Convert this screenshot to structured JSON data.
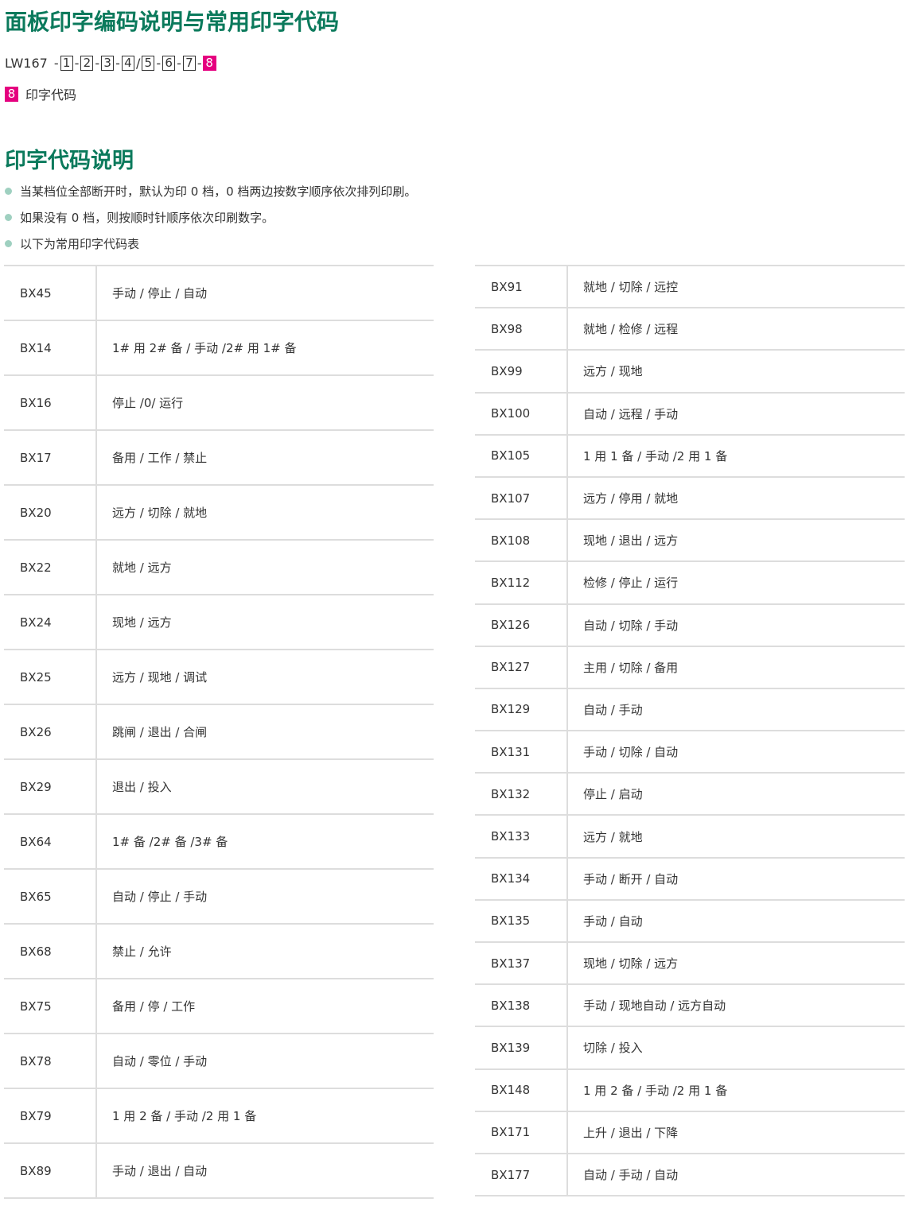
{
  "title": "面板印字编码说明与常用印字代码",
  "model": {
    "prefix": "LW167",
    "parts": [
      "1",
      "2",
      "3",
      "4",
      "5",
      "6",
      "7"
    ],
    "highlight": "8",
    "highlight_color": "#e5007f"
  },
  "legend": {
    "number": "8",
    "label": "印字代码"
  },
  "section_title": "印字代码说明",
  "bullets": [
    "当某档位全部断开时，默认为印 0 档，0 档两边按数字顺序依次排列印刷。",
    "如果没有 0 档，则按顺时针顺序依次印刷数字。",
    "以下为常用印字代码表"
  ],
  "accent_color": "#0b7a5c",
  "left_table": [
    [
      "BX45",
      "手动 / 停止 / 自动"
    ],
    [
      "BX14",
      "1# 用 2# 备 / 手动 /2# 用 1# 备"
    ],
    [
      "BX16",
      "停止 /0/ 运行"
    ],
    [
      "BX17",
      "备用 / 工作 / 禁止"
    ],
    [
      "BX20",
      "远方 / 切除 / 就地"
    ],
    [
      "BX22",
      "就地 / 远方"
    ],
    [
      "BX24",
      "现地 / 远方"
    ],
    [
      "BX25",
      "远方 / 现地 / 调试"
    ],
    [
      "BX26",
      "跳闸 / 退出 / 合闸"
    ],
    [
      "BX29",
      "退出 / 投入"
    ],
    [
      "BX64",
      "1# 备 /2# 备 /3# 备"
    ],
    [
      "BX65",
      "自动 / 停止 / 手动"
    ],
    [
      "BX68",
      "禁止 / 允许"
    ],
    [
      "BX75",
      "备用 / 停 / 工作"
    ],
    [
      "BX78",
      "自动 / 零位 / 手动"
    ],
    [
      "BX79",
      "1 用 2 备 / 手动 /2 用 1 备"
    ],
    [
      "BX89",
      "手动 / 退出 / 自动"
    ]
  ],
  "right_table": [
    [
      "BX91",
      "就地 / 切除 / 远控"
    ],
    [
      "BX98",
      "就地 / 检修 / 远程"
    ],
    [
      "BX99",
      "远方 / 现地"
    ],
    [
      "BX100",
      "自动 / 远程 / 手动"
    ],
    [
      "BX105",
      "1 用 1 备 / 手动 /2 用 1 备"
    ],
    [
      "BX107",
      "远方 / 停用 / 就地"
    ],
    [
      "BX108",
      "现地 / 退出 / 远方"
    ],
    [
      "BX112",
      "检修 / 停止 / 运行"
    ],
    [
      "BX126",
      "自动 / 切除 / 手动"
    ],
    [
      "BX127",
      "主用 / 切除 / 备用"
    ],
    [
      "BX129",
      "自动 / 手动"
    ],
    [
      "BX131",
      "手动 / 切除 / 自动"
    ],
    [
      "BX132",
      "停止 / 启动"
    ],
    [
      "BX133",
      "远方 / 就地"
    ],
    [
      "BX134",
      "手动 / 断开 / 自动"
    ],
    [
      "BX135",
      "手动 / 自动"
    ],
    [
      "BX137",
      "现地 / 切除 / 远方"
    ],
    [
      "BX138",
      "手动 / 现地自动 / 远方自动"
    ],
    [
      "BX139",
      "切除 / 投入"
    ],
    [
      "BX148",
      "1 用 2 备 / 手动 /2 用 1 备"
    ],
    [
      "BX171",
      "上升 / 退出 / 下降"
    ],
    [
      "BX177",
      "自动 / 手动 / 自动"
    ]
  ]
}
